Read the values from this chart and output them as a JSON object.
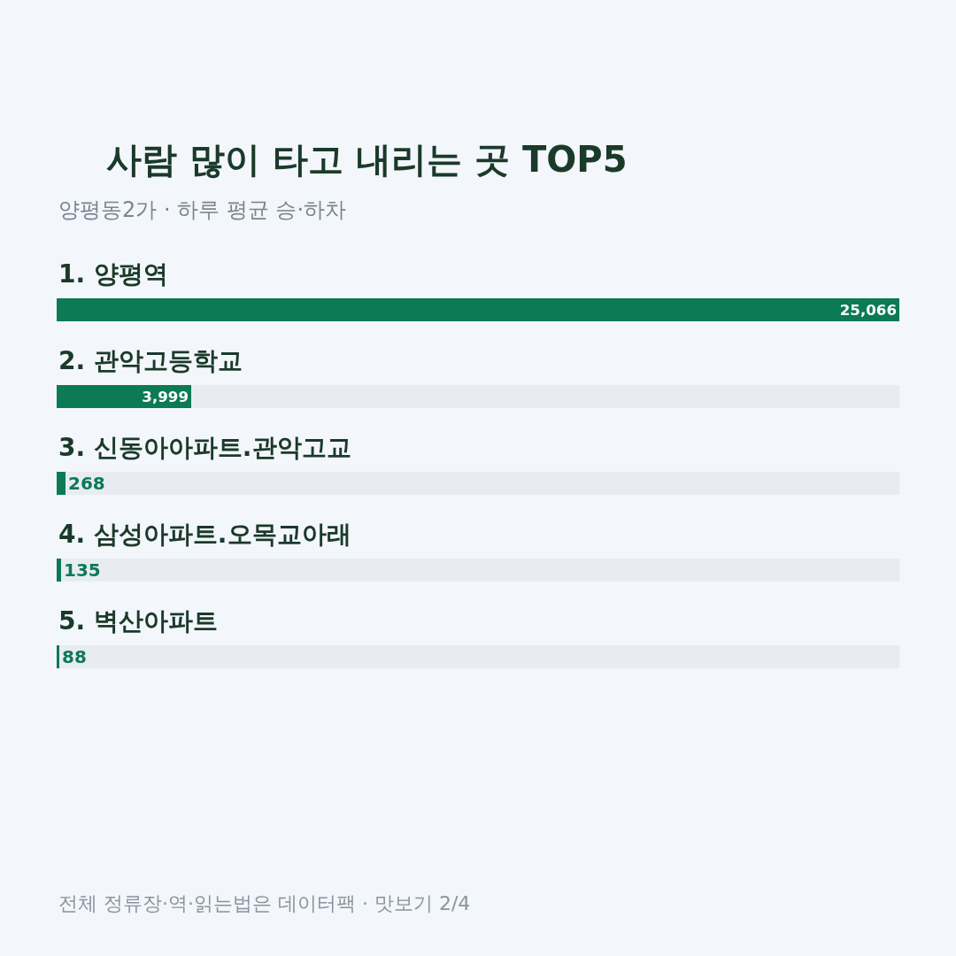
{
  "chart_data": {
    "type": "bar",
    "orientation": "horizontal",
    "title": "사람 많이 타고 내리는 곳 TOP5",
    "subtitle": "양평동2가 · 하루 평균 승·하차",
    "categories": [
      "1. 양평역",
      "2. 관악고등학교",
      "3. 신동아아파트.관악고교",
      "4. 삼성아파트.오목교아래",
      "5. 벽산아파트"
    ],
    "values": [
      25066,
      3999,
      268,
      135,
      88
    ],
    "color": "#0b7a55",
    "value_labels": [
      "25,066",
      "3,999",
      "268",
      "135",
      "88"
    ],
    "annotations": [
      "전체 정류장·역·읽는법은 데이터팩 · 맛보기 2/4"
    ]
  }
}
